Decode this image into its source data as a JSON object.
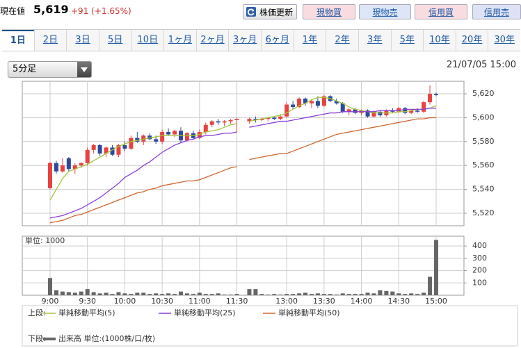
{
  "header": {
    "price_label": "現在値",
    "price": "5,619",
    "change": "+91 (+1.65%)",
    "buttons": [
      "株価更新",
      "現物買",
      "現物売",
      "信用買",
      "信用売"
    ]
  },
  "tabs": [
    "1日",
    "2日",
    "3日",
    "5日",
    "10日",
    "1ヶ月",
    "2ヶ月",
    "3ヶ月",
    "6ヶ月",
    "1年",
    "2年",
    "3年",
    "5年",
    "10年",
    "20年",
    "30年"
  ],
  "interval": "5分足",
  "timestamp": "21/07/05 15:00",
  "chart_data": [
    {
      "type": "candlestick",
      "legend_label": "上段:",
      "up_color": "#e8423f",
      "down_color": "#2b4a9e",
      "open": [
        5541,
        5562,
        5555,
        5566,
        5557,
        5560,
        5562,
        5573,
        5577,
        5570,
        5575,
        5569,
        5577,
        5574,
        5583,
        5580,
        5585,
        5582,
        5580,
        5588,
        5586,
        5589,
        5581,
        5587,
        5583,
        5588,
        5594,
        5597,
        5596,
        5597,
        5598,
        null,
        5597,
        5599,
        5598,
        5599,
        5600,
        5599,
        5601,
        5611,
        5609,
        5616,
        5612,
        5614,
        5610,
        5618,
        5614,
        5612,
        5605,
        5607,
        5604,
        5606,
        5601,
        5605,
        5602,
        5606,
        5605,
        5608,
        5604,
        5606,
        5605,
        5613,
        5620
      ],
      "high": [
        5563,
        5564,
        5566,
        5567,
        5562,
        5563,
        5575,
        5578,
        5578,
        5576,
        5577,
        5578,
        5580,
        5585,
        5588,
        5586,
        5587,
        5585,
        5590,
        5591,
        5590,
        5592,
        5588,
        5589,
        5590,
        5596,
        5598,
        5599,
        5598,
        5599,
        5600,
        null,
        5600,
        5601,
        5600,
        5601,
        5601,
        5603,
        5613,
        5614,
        5617,
        5617,
        5615,
        5618,
        5619,
        5619,
        5616,
        5613,
        5608,
        5608,
        5607,
        5607,
        5606,
        5606,
        5607,
        5608,
        5609,
        5609,
        5607,
        5608,
        5614,
        5627,
        5621
      ],
      "low": [
        5540,
        5553,
        5554,
        5555,
        5553,
        5558,
        5560,
        5570,
        5568,
        5567,
        5568,
        5567,
        5572,
        5573,
        5579,
        5577,
        5581,
        5578,
        5578,
        5585,
        5584,
        5579,
        5580,
        5582,
        5582,
        5586,
        5592,
        5594,
        5593,
        5595,
        5588,
        null,
        5595,
        5596,
        5597,
        5597,
        5598,
        5598,
        5600,
        5607,
        5608,
        5610,
        5608,
        5608,
        5609,
        5613,
        5611,
        5604,
        5602,
        5603,
        5602,
        5600,
        5600,
        5601,
        5601,
        5604,
        5604,
        5603,
        5603,
        5604,
        5604,
        5611,
        5618
      ],
      "close": [
        5562,
        5555,
        5560,
        5557,
        5560,
        5562,
        5573,
        5577,
        5570,
        5575,
        5569,
        5577,
        5574,
        5583,
        5580,
        5585,
        5582,
        5580,
        5588,
        5586,
        5589,
        5581,
        5587,
        5583,
        5588,
        5594,
        5597,
        5596,
        5597,
        5598,
        5599,
        null,
        5599,
        5598,
        5599,
        5600,
        5599,
        5601,
        5611,
        5609,
        5616,
        5612,
        5614,
        5610,
        5618,
        5614,
        5612,
        5605,
        5607,
        5604,
        5606,
        5601,
        5605,
        5602,
        5606,
        5605,
        5608,
        5604,
        5606,
        5605,
        5613,
        5620,
        5619
      ],
      "series": [
        {
          "name": "単純移動平均(5)",
          "color": "#a5c43a",
          "values": [
            5531,
            5540,
            5549,
            5555,
            5557,
            5559,
            5561,
            5564,
            5567,
            5570,
            5573,
            5576,
            5578,
            5580,
            5581,
            5582,
            5583,
            5584,
            5585,
            5585,
            5585,
            5585,
            5585,
            5585,
            5586,
            5588,
            5589,
            5590,
            5592,
            5594,
            5595,
            null,
            5597,
            5598,
            5599,
            5600,
            5601,
            5602,
            5604,
            5607,
            5610,
            5612,
            5615,
            5617,
            5617,
            5616,
            5614,
            5612,
            5609,
            5607,
            5606,
            5605,
            5604,
            5604,
            5604,
            5604,
            5605,
            5605,
            5606,
            5607,
            5607,
            5608,
            5610
          ]
        },
        {
          "name": "単純移動平均(25)",
          "color": "#8b3fd4",
          "values": [
            5516,
            5517,
            5518,
            5520,
            5522,
            5524,
            5527,
            5530,
            5533,
            5537,
            5541,
            5545,
            5550,
            5553,
            5556,
            5560,
            5563,
            5567,
            5571,
            5574,
            5577,
            5579,
            5581,
            5582,
            5584,
            5585,
            5585,
            5586,
            5587,
            5587,
            5588,
            null,
            5592,
            5593,
            5594,
            5595,
            5596,
            5597,
            5597,
            5598,
            5599,
            5600,
            5601,
            5602,
            5603,
            5604,
            5604,
            5605,
            5605,
            5605,
            5605,
            5605,
            5605,
            5606,
            5606,
            5606,
            5606,
            5607,
            5607,
            5607,
            5607,
            5608,
            5608
          ]
        },
        {
          "name": "単純移動平均(50)",
          "color": "#d0662c",
          "values": [
            5512,
            5513,
            5514,
            5516,
            5518,
            5519,
            5521,
            5523,
            5525,
            5527,
            5529,
            5531,
            5533,
            5535,
            5537,
            5538,
            5540,
            5541,
            5543,
            5544,
            5545,
            5546,
            5547,
            5547,
            5548,
            5550,
            5552,
            5554,
            5556,
            5558,
            5559,
            null,
            5565,
            5566,
            5567,
            5568,
            5569,
            5570,
            5570,
            5572,
            5574,
            5576,
            5578,
            5580,
            5582,
            5584,
            5586,
            5587,
            5588,
            5589,
            5590,
            5591,
            5592,
            5593,
            5594,
            5595,
            5596,
            5597,
            5598,
            5599,
            5599,
            5600,
            5600
          ]
        }
      ],
      "ylim": [
        5509.5,
        5630.5
      ],
      "yticks": [
        {
          "value": 5520,
          "label": "5,520"
        },
        {
          "value": 5540,
          "label": "5,540"
        },
        {
          "value": 5560,
          "label": "5,560"
        },
        {
          "value": 5580,
          "label": "5,580"
        },
        {
          "value": 5600,
          "label": "5,600"
        },
        {
          "value": 5620,
          "label": "5,620"
        }
      ],
      "grid": true
    },
    {
      "type": "bar",
      "title": "単位: 1000",
      "legend_label": "下段:",
      "categories": [
        "9:00",
        null,
        null,
        null,
        null,
        null,
        "9:30",
        null,
        null,
        null,
        null,
        null,
        "10:00",
        null,
        null,
        null,
        null,
        null,
        "10:30",
        null,
        null,
        null,
        null,
        null,
        "11:00",
        null,
        null,
        null,
        null,
        null,
        "11:30",
        null,
        null,
        null,
        null,
        null,
        null,
        null,
        "13:00",
        null,
        null,
        null,
        null,
        null,
        "13:30",
        null,
        null,
        null,
        null,
        null,
        "14:00",
        null,
        null,
        null,
        null,
        null,
        "14:30",
        null,
        null,
        null,
        null,
        null,
        "15:00"
      ],
      "series": [
        {
          "name": "出来高 単位:(1000株/口/枚)",
          "color": "#666666",
          "values": [
            140,
            40,
            30,
            25,
            20,
            30,
            50,
            25,
            15,
            20,
            10,
            25,
            15,
            10,
            20,
            20,
            10,
            15,
            10,
            15,
            10,
            30,
            15,
            10,
            20,
            10,
            10,
            15,
            5,
            5,
            10,
            null,
            50,
            50,
            10,
            5,
            10,
            5,
            10,
            10,
            15,
            20,
            10,
            15,
            10,
            10,
            5,
            15,
            10,
            10,
            10,
            20,
            15,
            40,
            35,
            30,
            15,
            10,
            15,
            10,
            20,
            150,
            450
          ]
        }
      ],
      "ylim": [
        0,
        480
      ],
      "yticks": [
        100,
        200,
        300,
        400
      ],
      "grid": true
    }
  ]
}
